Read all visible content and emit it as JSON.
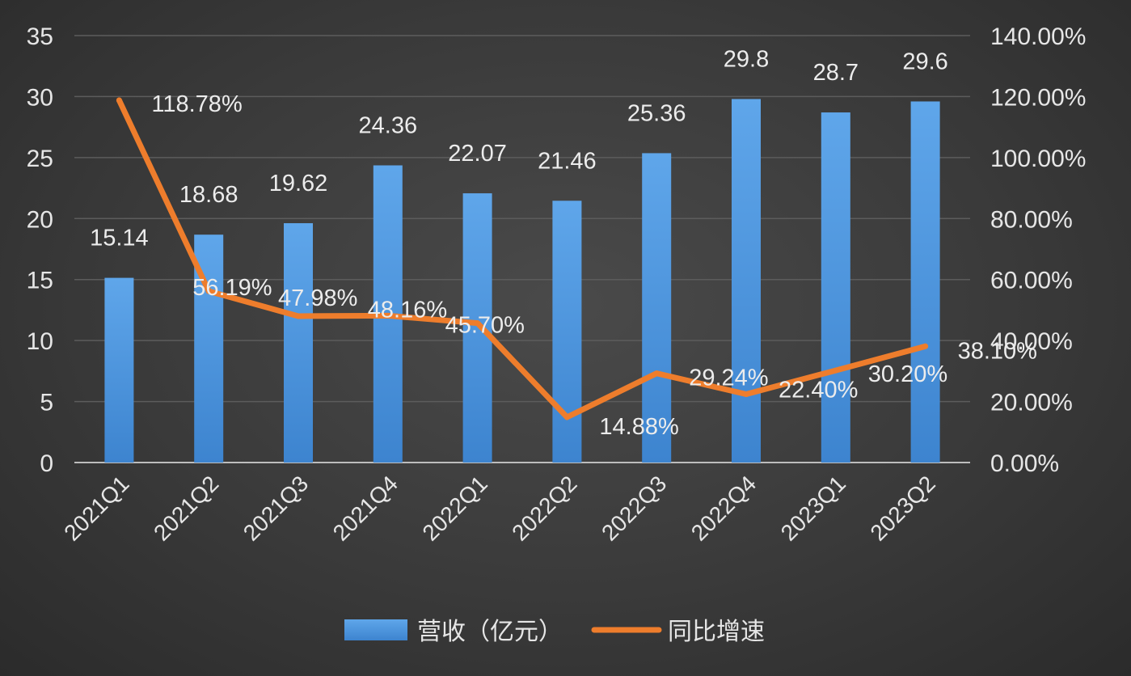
{
  "chart_data": {
    "type": "bar",
    "categories": [
      "2021Q1",
      "2021Q2",
      "2021Q3",
      "2021Q4",
      "2022Q1",
      "2022Q2",
      "2022Q3",
      "2022Q4",
      "2023Q1",
      "2023Q2"
    ],
    "series": [
      {
        "name": "营收（亿元）",
        "type": "bar",
        "axis": "left",
        "color": "#4a90d9",
        "values": [
          15.14,
          18.68,
          19.62,
          24.36,
          22.07,
          21.46,
          25.36,
          29.8,
          28.7,
          29.6
        ],
        "labels": [
          "15.14",
          "18.68",
          "19.62",
          "24.36",
          "22.07",
          "21.46",
          "25.36",
          "29.8",
          "28.7",
          "29.6"
        ]
      },
      {
        "name": "同比增速",
        "type": "line",
        "axis": "right",
        "color": "#ee7d2c",
        "values": [
          118.78,
          56.19,
          47.98,
          48.16,
          45.7,
          14.88,
          29.24,
          22.4,
          30.2,
          38.1
        ],
        "labels": [
          "118.78%",
          "56.19%",
          "47.98%",
          "48.16%",
          "45.70%",
          "14.88%",
          "29.24%",
          "22.40%",
          "30.20%",
          "38.10%"
        ]
      }
    ],
    "ylim_left": [
      0,
      35
    ],
    "yticks_left": [
      "0",
      "5",
      "10",
      "15",
      "20",
      "25",
      "30",
      "35"
    ],
    "ylim_right": [
      0,
      140
    ],
    "yticks_right": [
      "0.00%",
      "20.00%",
      "40.00%",
      "60.00%",
      "80.00%",
      "100.00%",
      "120.00%",
      "140.00%"
    ],
    "grid": true,
    "legend_position": "bottom"
  }
}
